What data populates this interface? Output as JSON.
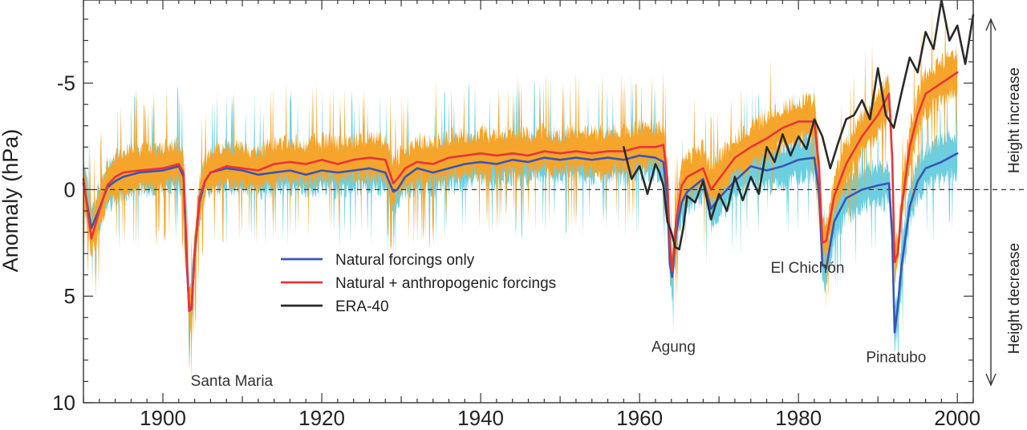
{
  "chart_data": {
    "type": "line",
    "title": "",
    "xlabel": "",
    "ylabel": "Anomaly (hPa)",
    "y_inverted": true,
    "xlim": [
      1890,
      2002
    ],
    "ylim": [
      -8.9,
      10
    ],
    "x_ticks": [
      {
        "value": 1900,
        "label": "1900"
      },
      {
        "value": 1920,
        "label": "1920"
      },
      {
        "value": 1940,
        "label": "1940"
      },
      {
        "value": 1960,
        "label": "1960"
      },
      {
        "value": 1980,
        "label": "1980"
      },
      {
        "value": 2000,
        "label": "2000"
      }
    ],
    "y_ticks": [
      {
        "value": -5,
        "label": "-5"
      },
      {
        "value": 0,
        "label": "0"
      },
      {
        "value": 5,
        "label": "5"
      },
      {
        "value": 10,
        "label": "10"
      }
    ],
    "zero_line": {
      "value": 0,
      "style": "dashed"
    },
    "right_labels": {
      "top": "Height increase",
      "bottom": "Height decrease"
    },
    "legend": {
      "position": "center-left",
      "entries": [
        {
          "label": "Natural forcings only",
          "color": "#3a55b4"
        },
        {
          "label": "Natural + anthropogenic forcings",
          "color": "#e8343a"
        },
        {
          "label": "ERA-40",
          "color": "#2a2a2a"
        }
      ]
    },
    "annotations": [
      {
        "text": "Santa Maria",
        "x": 1903.5,
        "y": 9.2
      },
      {
        "text": "Agung",
        "x": 1961.5,
        "y": 7.6
      },
      {
        "text": "El Chichón",
        "x": 1976.5,
        "y": 3.9
      },
      {
        "text": "Pinatubo",
        "x": 1988.5,
        "y": 8.1
      }
    ],
    "series": [
      {
        "name": "Natural forcings only",
        "color": "#3a55b4",
        "envelope_color": "#6ccfe0",
        "x": [
          1890,
          1891,
          1892,
          1893,
          1894,
          1895,
          1897,
          1900,
          1902,
          1902.6,
          1903,
          1903.3,
          1903.6,
          1904,
          1904.6,
          1905.3,
          1906,
          1908,
          1910,
          1912,
          1914,
          1916,
          1918,
          1920,
          1922,
          1924,
          1926,
          1928,
          1929,
          1929.5,
          1930.5,
          1932,
          1934,
          1936,
          1938,
          1940,
          1942,
          1944,
          1946,
          1948,
          1950,
          1952,
          1954,
          1956,
          1958,
          1960,
          1962,
          1963,
          1963.5,
          1963.8,
          1964.1,
          1964.6,
          1965.3,
          1966,
          1967,
          1968,
          1969,
          1970,
          1972,
          1974,
          1976,
          1978,
          1980,
          1982,
          1982.6,
          1983,
          1983.5,
          1984.5,
          1986,
          1988,
          1990,
          1991.4,
          1991.8,
          1992.1,
          1992.5,
          1993,
          1994,
          1995,
          1996,
          1998,
          2000
        ],
        "y": [
          -0.3,
          1.8,
          0.9,
          -0.1,
          -0.4,
          -0.6,
          -0.8,
          -0.9,
          -1.1,
          -0.6,
          3.5,
          5.5,
          5.6,
          3.0,
          0.6,
          -0.4,
          -0.8,
          -1.0,
          -0.9,
          -0.7,
          -0.8,
          -0.9,
          -0.7,
          -0.9,
          -0.8,
          -0.9,
          -1.0,
          -0.8,
          0.1,
          0.0,
          -0.6,
          -1.0,
          -0.8,
          -1.0,
          -1.2,
          -1.3,
          -1.2,
          -1.4,
          -1.3,
          -1.5,
          -1.4,
          -1.5,
          -1.4,
          -1.5,
          -1.4,
          -1.6,
          -1.5,
          -1.3,
          0.5,
          3.5,
          4.1,
          2.0,
          0.6,
          0.1,
          -0.2,
          -0.5,
          0.9,
          0.4,
          -0.4,
          -1.1,
          -0.9,
          -1.1,
          -1.4,
          -1.5,
          0.2,
          3.5,
          3.7,
          1.5,
          0.4,
          0.0,
          -0.2,
          -0.3,
          2.2,
          6.7,
          5.5,
          3.5,
          0.8,
          -0.4,
          -1.0,
          -1.3,
          -1.7
        ]
      },
      {
        "name": "Natural + anthropogenic forcings",
        "color": "#e8343a",
        "envelope_color": "#f5a52c",
        "x": [
          1890,
          1891,
          1892,
          1893,
          1894,
          1895,
          1897,
          1900,
          1902,
          1902.6,
          1903,
          1903.3,
          1903.6,
          1904,
          1904.6,
          1905.3,
          1906,
          1908,
          1910,
          1912,
          1914,
          1916,
          1918,
          1920,
          1922,
          1924,
          1926,
          1928,
          1929,
          1929.5,
          1930.5,
          1932,
          1934,
          1936,
          1938,
          1940,
          1942,
          1944,
          1946,
          1948,
          1950,
          1952,
          1954,
          1956,
          1958,
          1960,
          1962,
          1963,
          1963.5,
          1963.8,
          1964.1,
          1964.6,
          1965.3,
          1966,
          1967,
          1968,
          1969,
          1970,
          1972,
          1974,
          1976,
          1978,
          1980,
          1982,
          1982.6,
          1983,
          1983.5,
          1984.5,
          1986,
          1988,
          1990,
          1991.4,
          1991.8,
          1992.1,
          1992.5,
          1993,
          1994,
          1995,
          1996,
          1998,
          2000
        ],
        "y": [
          -0.5,
          2.3,
          1.0,
          -0.2,
          -0.6,
          -0.8,
          -0.9,
          -1.0,
          -1.2,
          -0.8,
          3.0,
          5.7,
          5.6,
          3.0,
          0.4,
          -0.4,
          -0.8,
          -1.1,
          -1.0,
          -0.9,
          -1.2,
          -1.3,
          -1.2,
          -1.4,
          -1.2,
          -1.4,
          -1.5,
          -1.4,
          -0.3,
          -0.5,
          -1.0,
          -1.3,
          -1.2,
          -1.5,
          -1.6,
          -1.7,
          -1.6,
          -1.7,
          -1.6,
          -1.8,
          -1.7,
          -1.8,
          -1.7,
          -1.8,
          -1.8,
          -2.0,
          -2.0,
          -2.1,
          -0.5,
          2.5,
          3.8,
          1.5,
          -0.2,
          -0.6,
          -0.8,
          -1.0,
          0.0,
          -0.5,
          -1.5,
          -2.0,
          -2.4,
          -2.9,
          -3.2,
          -3.2,
          -1.0,
          2.5,
          2.4,
          0.3,
          -1.2,
          -2.5,
          -3.5,
          -4.5,
          -1.5,
          3.4,
          3.0,
          0.8,
          -2.0,
          -3.5,
          -4.5,
          -5.0,
          -5.5
        ]
      },
      {
        "name": "ERA-40",
        "color": "#2a2a2a",
        "x": [
          1958,
          1959,
          1960,
          1961,
          1962,
          1962.5,
          1963,
          1963.5,
          1964,
          1964.5,
          1965,
          1965.5,
          1966,
          1967,
          1968,
          1969,
          1970,
          1971,
          1972,
          1973,
          1974,
          1975,
          1976,
          1977,
          1978,
          1979,
          1980,
          1981,
          1982,
          1983,
          1984,
          1985,
          1986,
          1987,
          1988,
          1989,
          1990,
          1991,
          1992,
          1993,
          1994,
          1995,
          1996,
          1997,
          1998,
          1999,
          2000,
          2001,
          2002
        ],
        "y": [
          -2.0,
          -0.5,
          -1.1,
          0.2,
          -1.2,
          -0.8,
          -0.2,
          1.5,
          2.0,
          2.7,
          2.8,
          1.8,
          0.3,
          0.6,
          -0.4,
          1.4,
          0.2,
          1.0,
          -0.6,
          0.5,
          -0.6,
          0.2,
          -2.0,
          -1.3,
          -2.6,
          -1.6,
          -2.5,
          -1.9,
          -3.3,
          -2.5,
          -1.0,
          -2.2,
          -3.3,
          -3.5,
          -4.2,
          -3.3,
          -5.7,
          -3.5,
          -2.9,
          -4.6,
          -6.2,
          -5.5,
          -7.4,
          -6.6,
          -8.9,
          -7.0,
          -7.7,
          -5.9,
          -8.2
        ]
      }
    ]
  }
}
